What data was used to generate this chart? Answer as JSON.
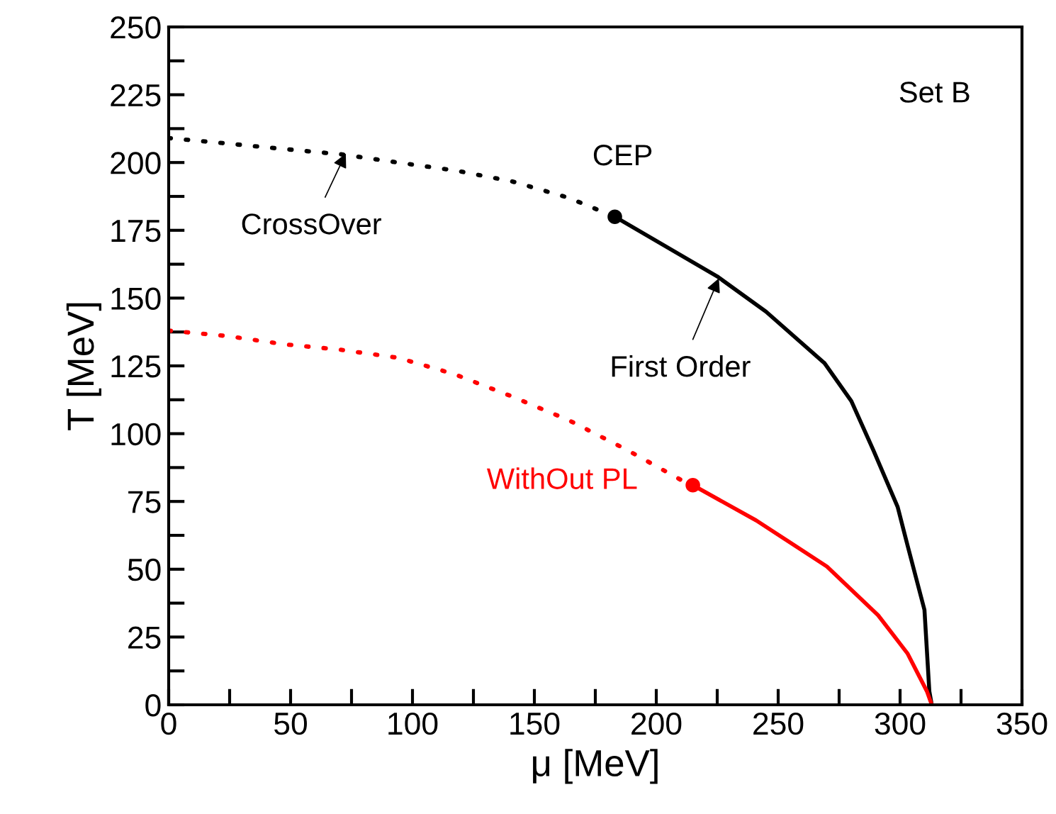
{
  "chart_data": {
    "type": "line",
    "xlabel": "μ [MeV]",
    "ylabel": "T [MeV]",
    "xlim": [
      0,
      350
    ],
    "ylim": [
      0,
      250
    ],
    "xticks": [
      0,
      {
        "value": 25,
        "label": null
      },
      50,
      {
        "value": 75,
        "label": null
      },
      100,
      {
        "value": 125,
        "label": null
      },
      150,
      {
        "value": 175,
        "label": null
      },
      200,
      {
        "value": 225,
        "label": null
      },
      250,
      {
        "value": 275,
        "label": null
      },
      300,
      {
        "value": 325,
        "label": null
      },
      350
    ],
    "yticks": [
      0,
      {
        "value": 12.5,
        "label": null
      },
      25,
      {
        "value": 37.5,
        "label": null
      },
      50,
      {
        "value": 62.5,
        "label": null
      },
      75,
      {
        "value": 87.5,
        "label": null
      },
      100,
      {
        "value": 112.5,
        "label": null
      },
      125,
      {
        "value": 137.5,
        "label": null
      },
      150,
      {
        "value": 162.5,
        "label": null
      },
      175,
      {
        "value": 187.5,
        "label": null
      },
      200,
      {
        "value": 212.5,
        "label": null
      },
      225,
      {
        "value": 237.5,
        "label": null
      },
      250
    ],
    "grid": false,
    "legend": false,
    "series": [
      {
        "color": "#000000",
        "line_style": "dotted",
        "x": [
          0,
          24,
          47,
          71,
          94,
          118,
          141,
          164,
          183
        ],
        "values": [
          209,
          207,
          205,
          203,
          200,
          197,
          193,
          187,
          180
        ]
      },
      {
        "color": "#000000",
        "line_style": "solid",
        "x": [
          183,
          225,
          245,
          269,
          280,
          289,
          299,
          303,
          310,
          312,
          313
        ],
        "values": [
          180,
          158,
          145,
          126,
          112,
          94,
          73,
          59,
          35,
          5,
          0
        ]
      },
      {
        "name": "WithOut PL",
        "color": "#ff0000",
        "line_style": "dotted",
        "x": [
          0,
          24,
          47,
          70,
          94,
          117,
          140,
          164,
          188,
          210,
          215
        ],
        "values": [
          138,
          136,
          133,
          131,
          128,
          122,
          114,
          105,
          94,
          83,
          81
        ]
      },
      {
        "color": "#ff0000",
        "line_style": "solid",
        "x": [
          215,
          241,
          270,
          291,
          303,
          311,
          313
        ],
        "values": [
          81,
          68,
          51,
          33,
          19,
          5,
          0
        ]
      },
      {
        "type": "scatter",
        "marker": "circle",
        "colors": [
          "#000000",
          "#ff0000"
        ],
        "x": [
          183,
          215
        ],
        "values": [
          180,
          81
        ]
      }
    ],
    "annotations": [
      "Set B",
      {
        "text": "CEP",
        "x": 183,
        "y": 180
      },
      {
        "text": "CrossOver",
        "x": 73,
        "y": 204
      },
      {
        "text": "First Order",
        "x": 226,
        "y": 158
      }
    ]
  }
}
